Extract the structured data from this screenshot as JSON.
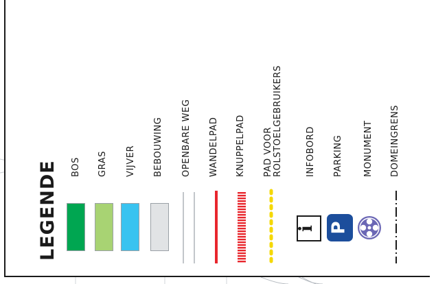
{
  "legend": {
    "title": "LEGENDE",
    "items": [
      {
        "key": "bos",
        "label": "BOS",
        "color": "#00a651"
      },
      {
        "key": "gras",
        "label": "GRAS",
        "color": "#a8d373"
      },
      {
        "key": "vijver",
        "label": "VIJVER",
        "color": "#39c3f0"
      },
      {
        "key": "bebouwing",
        "label": "BEBOUWING",
        "color": "#e1e3e5"
      },
      {
        "key": "openbare_weg",
        "label": "OPENBARE WEG",
        "color": "#ffffff"
      },
      {
        "key": "wandelpad",
        "label": "WANDELPAD",
        "color": "#e8262d"
      },
      {
        "key": "knuppelpad",
        "label": "KNUPPELPAD",
        "color": "#e8262d"
      },
      {
        "key": "pad_voor_rolstoelgebruikers",
        "label": "PAD VOOR\nROLSTOELGEBRUIKERS",
        "color": "#f5d800"
      },
      {
        "key": "infobord",
        "label": "INFOBORD",
        "icon": "info-board-icon",
        "glyph": "i"
      },
      {
        "key": "parking",
        "label": "PARKING",
        "icon": "parking-icon",
        "glyph": "P",
        "color": "#1c4e9c"
      },
      {
        "key": "monument",
        "label": "MONUMENT",
        "icon": "monument-icon",
        "color": "#6b67b5"
      },
      {
        "key": "domeingrens",
        "label": "DOMEINGRENS",
        "color": "#1a1a1a"
      }
    ]
  }
}
